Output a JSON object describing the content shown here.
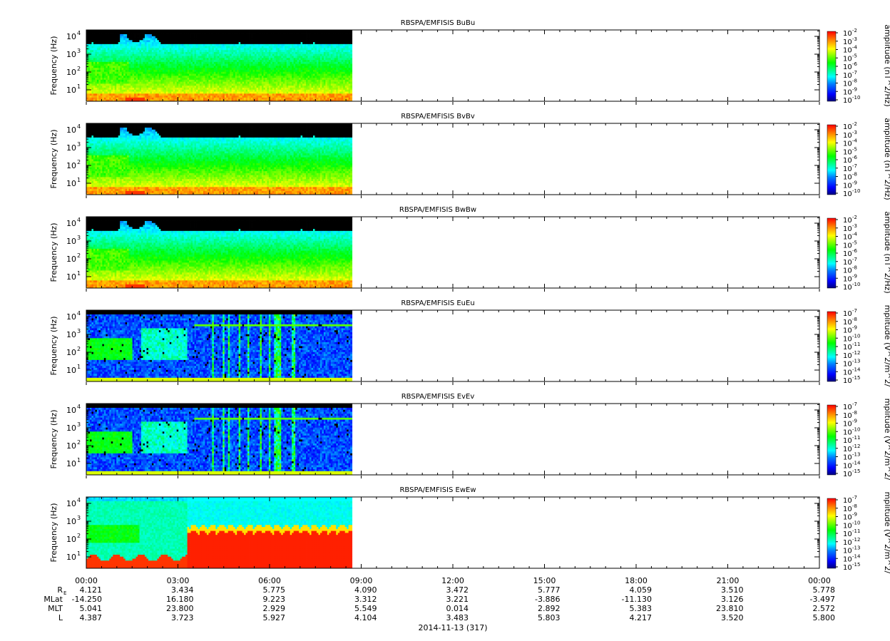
{
  "chart_data": {
    "type": "heatmap",
    "date_label": "2014-11-13 (317)",
    "x_ticks": [
      "00:00",
      "03:00",
      "06:00",
      "09:00",
      "12:00",
      "15:00",
      "18:00",
      "21:00",
      "00:00"
    ],
    "data_end_time": "08:42",
    "ephemeris": {
      "rows": [
        {
          "label": "R",
          "subscript": "E",
          "values": [
            "4.121",
            "3.434",
            "5.775",
            "4.090",
            "3.472",
            "5.777",
            "4.059",
            "3.510",
            "5.778"
          ]
        },
        {
          "label": "MLat",
          "subscript": "",
          "values": [
            "-14.250",
            "16.180",
            "9.223",
            "3.312",
            "3.221",
            "-3.886",
            "-11.130",
            "3.126",
            "-3.497"
          ]
        },
        {
          "label": "MLT",
          "subscript": "",
          "values": [
            "5.041",
            "23.800",
            "2.929",
            "5.549",
            "0.014",
            "2.892",
            "5.383",
            "23.810",
            "2.572"
          ]
        },
        {
          "label": "L",
          "subscript": "",
          "values": [
            "4.387",
            "3.723",
            "5.927",
            "4.104",
            "3.483",
            "5.803",
            "4.217",
            "3.520",
            "5.800"
          ]
        }
      ]
    },
    "panels": [
      {
        "title": "RBSPA/EMFISIS  BuBu",
        "kind": "B",
        "ylabel": "Frequency (Hz)",
        "y_ticks": [
          {
            "base": "10",
            "exp": "1"
          },
          {
            "base": "10",
            "exp": "2"
          },
          {
            "base": "10",
            "exp": "3"
          },
          {
            "base": "10",
            "exp": "4"
          }
        ],
        "colorbar": {
          "label": "amplitude (nT^2/Hz)",
          "exponents": [
            "-2",
            "-3",
            "-4",
            "-5",
            "-6",
            "-7",
            "-8",
            "-9",
            "-10"
          ]
        }
      },
      {
        "title": "RBSPA/EMFISIS  BvBv",
        "kind": "B",
        "ylabel": "Frequency (Hz)",
        "y_ticks": [
          {
            "base": "10",
            "exp": "1"
          },
          {
            "base": "10",
            "exp": "2"
          },
          {
            "base": "10",
            "exp": "3"
          },
          {
            "base": "10",
            "exp": "4"
          }
        ],
        "colorbar": {
          "label": "amplitude (nT^2/Hz)",
          "exponents": [
            "-2",
            "-3",
            "-4",
            "-5",
            "-6",
            "-7",
            "-8",
            "-9",
            "-10"
          ]
        }
      },
      {
        "title": "RBSPA/EMFISIS  BwBw",
        "kind": "B",
        "ylabel": "Frequency (Hz)",
        "y_ticks": [
          {
            "base": "10",
            "exp": "1"
          },
          {
            "base": "10",
            "exp": "2"
          },
          {
            "base": "10",
            "exp": "3"
          },
          {
            "base": "10",
            "exp": "4"
          }
        ],
        "colorbar": {
          "label": "amplitude (nT^2/Hz)",
          "exponents": [
            "-2",
            "-3",
            "-4",
            "-5",
            "-6",
            "-7",
            "-8",
            "-9",
            "-10"
          ]
        }
      },
      {
        "title": "RBSPA/EMFISIS  EuEu",
        "kind": "E",
        "ylabel": "Frequency (Hz)",
        "y_ticks": [
          {
            "base": "10",
            "exp": "1"
          },
          {
            "base": "10",
            "exp": "2"
          },
          {
            "base": "10",
            "exp": "3"
          },
          {
            "base": "10",
            "exp": "4"
          }
        ],
        "colorbar": {
          "label": "mplitude (V^2/m^2/",
          "exponents": [
            "-7",
            "-8",
            "-9",
            "-10",
            "-11",
            "-12",
            "-13",
            "-14",
            "-15"
          ]
        }
      },
      {
        "title": "RBSPA/EMFISIS  EvEv",
        "kind": "E",
        "ylabel": "Frequency (Hz)",
        "y_ticks": [
          {
            "base": "10",
            "exp": "1"
          },
          {
            "base": "10",
            "exp": "2"
          },
          {
            "base": "10",
            "exp": "3"
          },
          {
            "base": "10",
            "exp": "4"
          }
        ],
        "colorbar": {
          "label": "mplitude (V^2/m^2/",
          "exponents": [
            "-7",
            "-8",
            "-9",
            "-10",
            "-11",
            "-12",
            "-13",
            "-14",
            "-15"
          ]
        }
      },
      {
        "title": "RBSPA/EMFISIS  EwEw",
        "kind": "Ew",
        "ylabel": "Frequency (Hz)",
        "y_ticks": [
          {
            "base": "10",
            "exp": "1"
          },
          {
            "base": "10",
            "exp": "2"
          },
          {
            "base": "10",
            "exp": "3"
          },
          {
            "base": "10",
            "exp": "4"
          }
        ],
        "colorbar": {
          "label": "mplitude (V^2/m^2/",
          "exponents": [
            "-7",
            "-8",
            "-9",
            "-10",
            "-11",
            "-12",
            "-13",
            "-14",
            "-15"
          ]
        }
      }
    ],
    "colormap": [
      "#000080",
      "#0000ff",
      "#0080ff",
      "#00ffff",
      "#00ff80",
      "#00ff00",
      "#80ff00",
      "#ffff00",
      "#ff8000",
      "#ff0000"
    ]
  }
}
